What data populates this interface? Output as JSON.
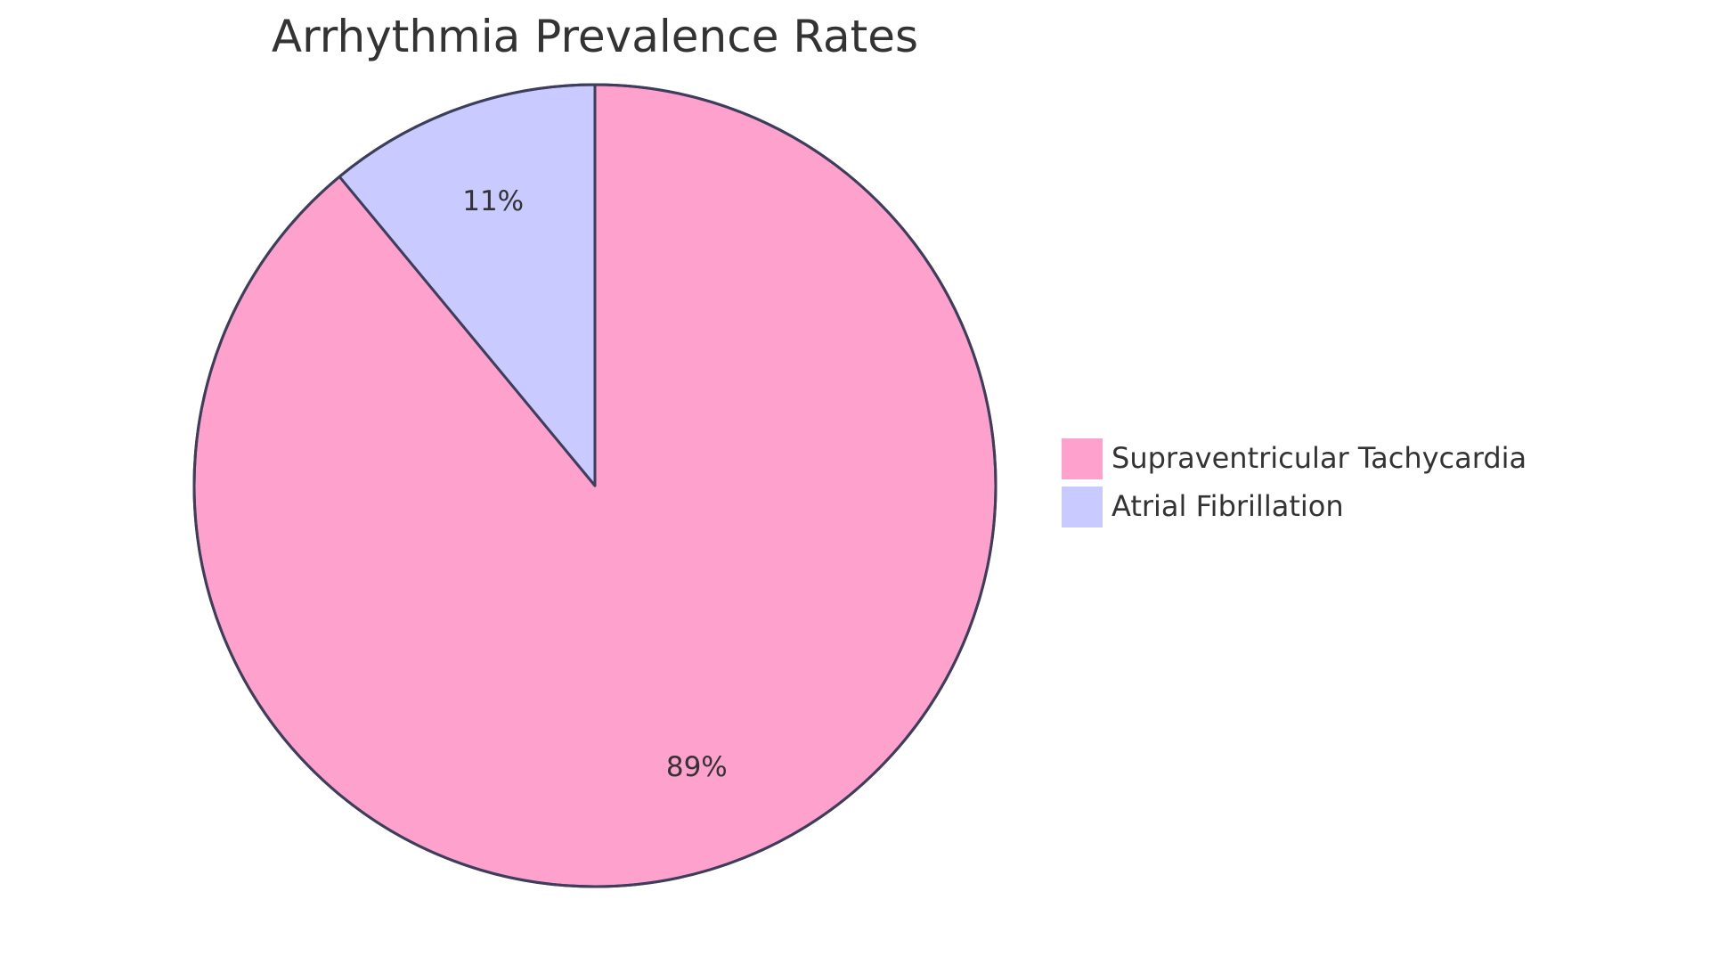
{
  "chart_data": {
    "type": "pie",
    "title": "Arrhythmia Prevalence Rates",
    "legend_position": "right",
    "slices": [
      {
        "label": "Supraventricular Tachycardia",
        "value": 89,
        "display": "89%",
        "color": "#ffa1cd"
      },
      {
        "label": "Atrial Fibrillation",
        "value": 11,
        "display": "11%",
        "color": "#c9caff"
      }
    ],
    "stroke_color": "#3d3d5c"
  }
}
